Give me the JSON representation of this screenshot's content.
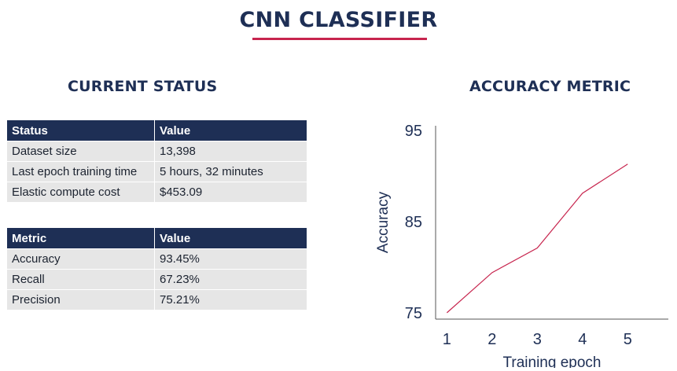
{
  "page": {
    "title": "CNN CLASSIFIER",
    "accent_color": "#c7254e",
    "header_color": "#1e2f55"
  },
  "status_section": {
    "heading": "CURRENT STATUS",
    "table": {
      "headers": [
        "Status",
        "Value"
      ],
      "rows": [
        [
          "Dataset size",
          "13,398"
        ],
        [
          "Last epoch training time",
          "5 hours, 32 minutes"
        ],
        [
          "Elastic compute cost",
          "$453.09"
        ]
      ]
    }
  },
  "metric_table": {
    "headers": [
      "Metric",
      "Value"
    ],
    "rows": [
      [
        "Accuracy",
        "93.45%"
      ],
      [
        "Recall",
        "67.23%"
      ],
      [
        "Precision",
        "75.21%"
      ]
    ]
  },
  "chart_section": {
    "heading": "ACCURACY METRIC"
  },
  "chart_data": {
    "type": "line",
    "title": "ACCURACY METRIC",
    "xlabel": "Training epoch",
    "ylabel": "Accuracy",
    "x": [
      1,
      2,
      3,
      4,
      5
    ],
    "x_tick_labels": [
      "1",
      "2",
      "3",
      "4",
      "5"
    ],
    "y_tick_values": [
      75,
      85,
      95
    ],
    "y_tick_labels": [
      "75",
      "85",
      "95"
    ],
    "xlim": [
      0.75,
      5.9
    ],
    "ylim": [
      74.3,
      95.5
    ],
    "series": [
      {
        "values": [
          75.0,
          79.4,
          82.1,
          88.1,
          91.3
        ],
        "color": "#c7254e"
      }
    ],
    "grid": false,
    "legend": "none"
  }
}
